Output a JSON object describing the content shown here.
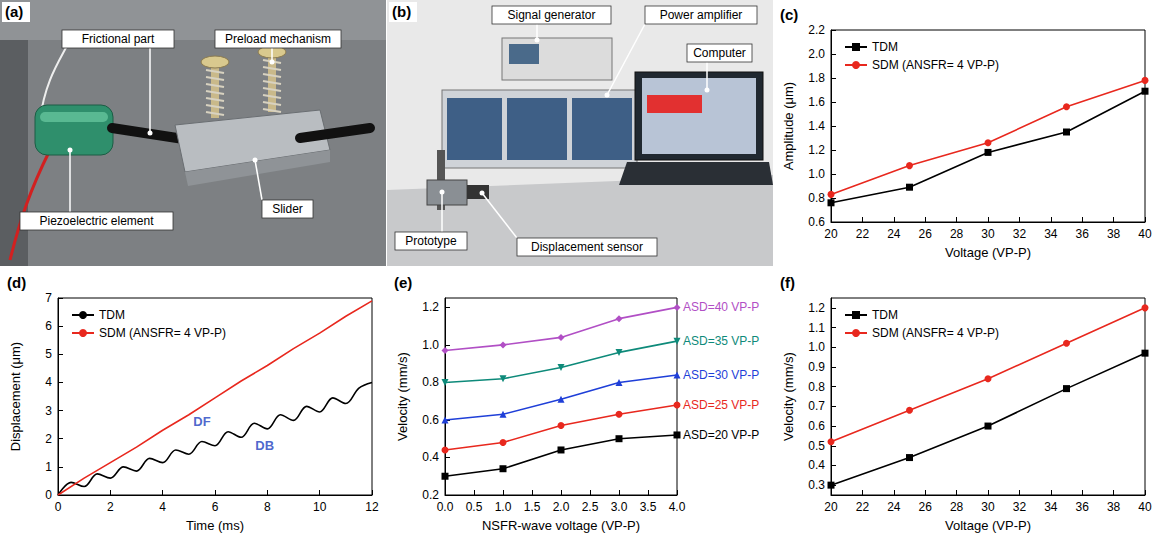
{
  "photos": [
    {
      "panel": "(a)",
      "labels": [
        "Frictional part",
        "Preload mechanism",
        "Piezoelectric element",
        "Slider"
      ]
    },
    {
      "panel": "(b)",
      "labels": [
        "Signal generator",
        "Power amplifier",
        "Computer",
        "Prototype",
        "Displacement sensor"
      ]
    }
  ],
  "chart_data": [
    {
      "panel": "(c)",
      "type": "line",
      "x_label": "Voltage (VP-P)",
      "y_label": "Amplitude (μm)",
      "x": [
        20,
        25,
        30,
        35,
        40
      ],
      "series": [
        {
          "name": "TDM",
          "color": "#000000",
          "marker": "square",
          "values": [
            0.76,
            0.89,
            1.18,
            1.35,
            1.69
          ]
        },
        {
          "name": "SDM (ANSFR= 4 VP-P)",
          "color": "#e8281e",
          "marker": "circle",
          "values": [
            0.83,
            1.07,
            1.26,
            1.56,
            1.78
          ]
        }
      ],
      "xlim": [
        20,
        40
      ],
      "xticks": [
        20,
        22,
        24,
        26,
        28,
        30,
        32,
        34,
        36,
        38,
        40
      ],
      "ylim": [
        0.6,
        2.2
      ],
      "yticks": [
        0.6,
        0.8,
        {
          "value": 1,
          "label": "1.0"
        },
        1.2,
        1.4,
        1.6,
        1.8,
        {
          "value": 2,
          "label": "2.0"
        },
        2.2
      ],
      "grid": false,
      "legend": "upper left"
    },
    {
      "panel": "(d)",
      "type": "line",
      "x_label": "Time (ms)",
      "y_label": "Displacement (μm)",
      "series": [
        {
          "name": "TDM",
          "color": "#000000",
          "marker": "none",
          "line_style": "smooth",
          "x": [
            0,
            0.5,
            1,
            1.5,
            2,
            2.5,
            3,
            3.5,
            4,
            4.5,
            5,
            5.5,
            6,
            6.5,
            7,
            7.5,
            8,
            8.5,
            9,
            9.5,
            10,
            10.5,
            11,
            11.5,
            12
          ],
          "values": [
            0,
            0.45,
            0.3,
            0.75,
            0.6,
            1.0,
            0.85,
            1.3,
            1.15,
            1.6,
            1.45,
            1.9,
            1.75,
            2.25,
            2.05,
            2.55,
            2.35,
            2.85,
            2.65,
            3.15,
            2.95,
            3.45,
            3.25,
            3.8,
            4.0
          ]
        },
        {
          "name": "SDM (ANSFR= 4 VP-P)",
          "color": "#e8281e",
          "marker": "none",
          "line_style": "solid",
          "x": [
            0,
            1,
            2,
            3,
            4,
            5,
            6,
            7,
            8,
            9,
            10,
            11,
            12
          ],
          "values": [
            0,
            0.6,
            1.15,
            1.7,
            2.3,
            2.85,
            3.45,
            4.05,
            4.6,
            5.2,
            5.75,
            6.35,
            6.9
          ]
        }
      ],
      "annotations": [
        {
          "text": "DF",
          "x": 5.5,
          "y": 2.6
        },
        {
          "text": "DB",
          "x": 7.9,
          "y": 1.75
        }
      ],
      "xlim": [
        0,
        12
      ],
      "xticks": [
        0,
        2,
        4,
        6,
        8,
        10,
        12
      ],
      "ylim": [
        0,
        7
      ],
      "yticks": [
        0,
        1,
        2,
        3,
        4,
        5,
        6,
        7
      ],
      "grid": false,
      "legend": "upper left"
    },
    {
      "panel": "(e)",
      "type": "line",
      "x_label": "NSFR-wave voltage (VP-P)",
      "y_label": "Velocity (mm/s)",
      "x": [
        0,
        1,
        2,
        3,
        4
      ],
      "series": [
        {
          "name": "ASD=20 VP-P",
          "color": "#000000",
          "marker": "square",
          "values": [
            0.3,
            0.34,
            0.44,
            0.5,
            0.52
          ]
        },
        {
          "name": "ASD=25 VP-P",
          "color": "#e8281e",
          "marker": "circle",
          "values": [
            0.44,
            0.48,
            0.57,
            0.63,
            0.68
          ]
        },
        {
          "name": "ASD=30 VP-P",
          "color": "#1f3fd8",
          "marker": "triangle",
          "values": [
            0.6,
            0.63,
            0.71,
            0.8,
            0.84
          ]
        },
        {
          "name": "ASD=35 VP-P",
          "color": "#0e8a7a",
          "marker": "triangle-down",
          "values": [
            0.8,
            0.82,
            0.88,
            0.96,
            1.02
          ]
        },
        {
          "name": "ASD=40 VP-P",
          "color": "#b14fc5",
          "marker": "diamond",
          "values": [
            0.97,
            1.0,
            1.04,
            1.14,
            1.2
          ]
        }
      ],
      "xlim": [
        0,
        4
      ],
      "xticks": [
        {
          "value": 0,
          "label": "0.0"
        },
        0.5,
        {
          "value": 1,
          "label": "1.0"
        },
        1.5,
        {
          "value": 2,
          "label": "2.0"
        },
        2.5,
        {
          "value": 3,
          "label": "3.0"
        },
        3.5,
        {
          "value": 4,
          "label": "4.0"
        }
      ],
      "ylim": [
        0.2,
        1.25
      ],
      "yticks": [
        0.2,
        0.4,
        0.6,
        0.8,
        {
          "value": 1,
          "label": "1.0"
        },
        1.2
      ],
      "grid": false
    },
    {
      "panel": "(f)",
      "type": "line",
      "x_label": "Voltage (VP-P)",
      "y_label": "Velocity (mm/s)",
      "x": [
        20,
        25,
        30,
        35,
        40
      ],
      "series": [
        {
          "name": "TDM",
          "color": "#000000",
          "marker": "square",
          "values": [
            0.3,
            0.44,
            0.6,
            0.79,
            0.97
          ]
        },
        {
          "name": "SDM (ANSFR= 4 VP-P)",
          "color": "#e8281e",
          "marker": "circle",
          "values": [
            0.52,
            0.68,
            0.84,
            1.02,
            1.2
          ]
        }
      ],
      "xlim": [
        20,
        40
      ],
      "xticks": [
        20,
        22,
        24,
        26,
        28,
        30,
        32,
        34,
        36,
        38,
        40
      ],
      "ylim": [
        0.25,
        1.25
      ],
      "yticks": [
        0.3,
        0.4,
        0.5,
        0.6,
        0.7,
        0.8,
        0.9,
        {
          "value": 1,
          "label": "1.0"
        },
        1.1,
        1.2
      ],
      "grid": false,
      "legend": "upper left"
    }
  ]
}
